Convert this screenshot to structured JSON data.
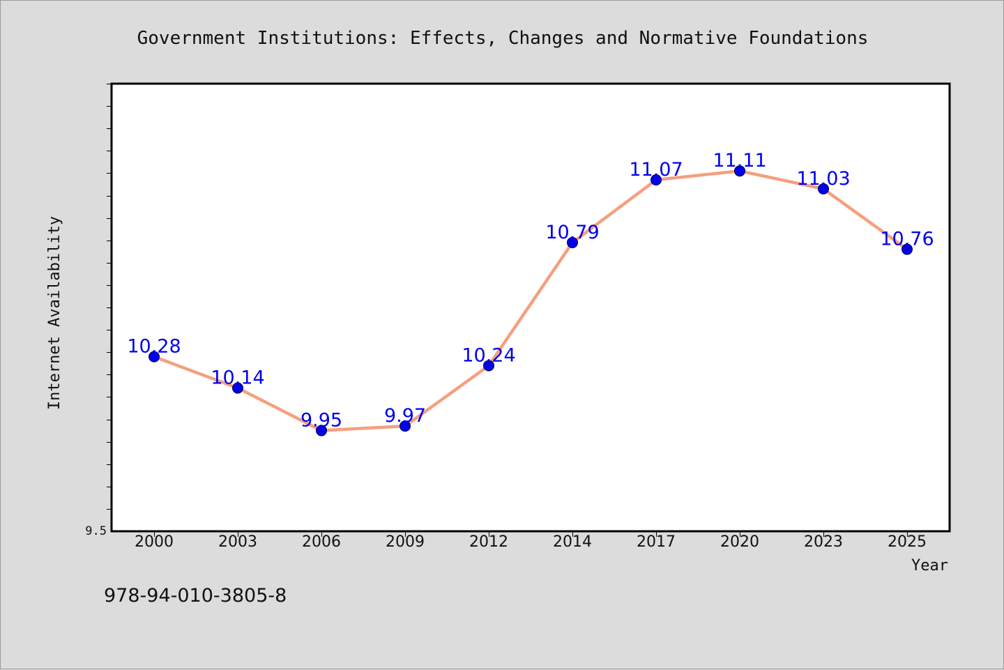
{
  "chart_data": {
    "type": "line",
    "title": "Government Institutions: Effects, Changes and Normative Foundations",
    "xlabel": "Year",
    "ylabel": "Internet Availability",
    "categories": [
      "2000",
      "2003",
      "2006",
      "2009",
      "2012",
      "2014",
      "2017",
      "2020",
      "2023",
      "2025"
    ],
    "series": [
      {
        "values": [
          10.28,
          10.14,
          9.95,
          9.97,
          10.24,
          10.79,
          11.07,
          11.11,
          11.03,
          10.76
        ]
      }
    ],
    "ylim": [
      9.5,
      11.5
    ],
    "y_min_label": "9.5",
    "grid": false,
    "legend": "none",
    "line_color": "#f4a07f",
    "marker_color": "#0000ee",
    "label_color": "#0000ee"
  },
  "footer": {
    "isbn": "978-94-010-3805-8"
  }
}
